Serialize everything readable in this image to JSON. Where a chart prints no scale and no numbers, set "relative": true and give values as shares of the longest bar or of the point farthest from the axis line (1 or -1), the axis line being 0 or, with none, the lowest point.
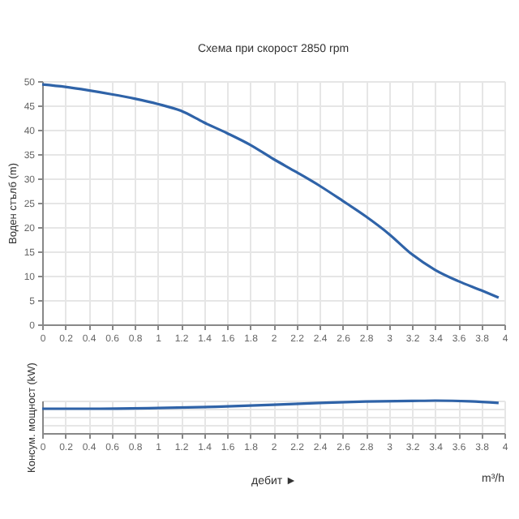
{
  "chart_data": [
    {
      "type": "line",
      "title": "Схема при скорост 2850 rpm",
      "ylabel": "Воден стълб (m)",
      "grid": true,
      "xlim": [
        0,
        4
      ],
      "ylim": [
        0,
        50
      ],
      "xticks": [
        0,
        0.2,
        0.4,
        0.6,
        0.8,
        1,
        1.2,
        1.4,
        1.6,
        1.8,
        2,
        2.2,
        2.4,
        2.6,
        2.8,
        3,
        3.2,
        3.4,
        3.6,
        3.8,
        4
      ],
      "yticks": [
        0,
        5,
        10,
        15,
        20,
        25,
        30,
        35,
        40,
        45,
        50
      ],
      "series": [
        {
          "color": "#2f63a8",
          "x": [
            0,
            0.2,
            0.4,
            0.6,
            0.8,
            1,
            1.2,
            1.4,
            1.6,
            1.8,
            2,
            2.2,
            2.4,
            2.6,
            2.8,
            3,
            3.2,
            3.4,
            3.6,
            3.8,
            3.95
          ],
          "values": [
            49.3,
            48.8,
            48.1,
            47.3,
            46.4,
            45.3,
            43.9,
            41.5,
            39.3,
            36.9,
            34.0,
            31.3,
            28.5,
            25.4,
            22.2,
            18.6,
            14.4,
            11.2,
            8.9,
            7.0,
            5.5
          ]
        }
      ]
    },
    {
      "type": "line",
      "ylabel": "Консум. мощност (kW)",
      "xlabel": "дебит ►",
      "annotations": [
        "m³/h"
      ],
      "relative": true,
      "grid": true,
      "tick_labels": "x",
      "xlim": [
        0,
        4
      ],
      "xticks": [
        0,
        0.2,
        0.4,
        0.6,
        0.8,
        1,
        1.2,
        1.4,
        1.6,
        1.8,
        2,
        2.2,
        2.4,
        2.6,
        2.8,
        3,
        3.2,
        3.4,
        3.6,
        3.8,
        4
      ],
      "series": [
        {
          "color": "#2f63a8",
          "x": [
            0,
            0.5,
            1,
            1.5,
            2,
            2.4,
            2.8,
            3.2,
            3.4,
            3.7,
            3.95
          ],
          "values": [
            0.75,
            0.75,
            0.77,
            0.81,
            0.87,
            0.93,
            0.97,
            0.99,
            1,
            0.98,
            0.93
          ]
        }
      ]
    }
  ]
}
